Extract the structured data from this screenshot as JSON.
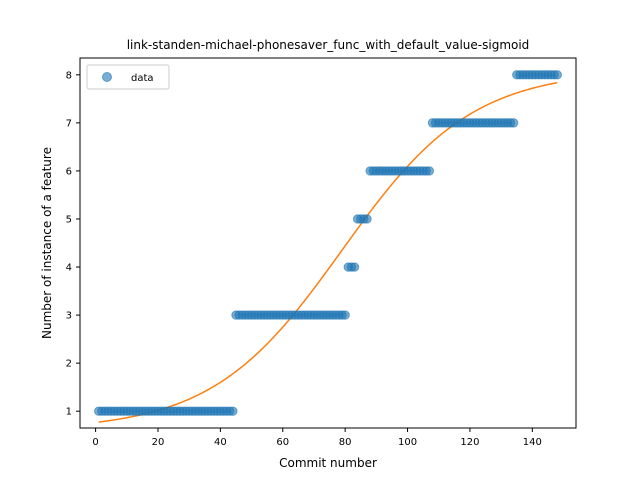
{
  "chart_data": {
    "type": "scatter",
    "title": "link-standen-michael-phonesaver_func_with_default_value-sigmoid",
    "xlabel": "Commit number",
    "ylabel": "Number of instance of a feature",
    "xlim": [
      -5,
      154
    ],
    "ylim": [
      0.65,
      8.35
    ],
    "xticks": [
      0,
      20,
      40,
      60,
      80,
      100,
      120,
      140
    ],
    "yticks": [
      1,
      2,
      3,
      4,
      5,
      6,
      7,
      8
    ],
    "legend": {
      "position": "top-left",
      "entries": [
        "data"
      ]
    },
    "colors": {
      "data": "#1f77b4",
      "fit": "#ff7f0e"
    },
    "series": [
      {
        "name": "data",
        "kind": "scatter",
        "segments": [
          {
            "x_start": 1,
            "x_end": 44,
            "y": 1
          },
          {
            "x_start": 45,
            "x_end": 80,
            "y": 3
          },
          {
            "x_start": 81,
            "x_end": 83,
            "y": 4
          },
          {
            "x_start": 84,
            "x_end": 87,
            "y": 5
          },
          {
            "x_start": 88,
            "x_end": 107,
            "y": 6
          },
          {
            "x_start": 108,
            "x_end": 134,
            "y": 7
          },
          {
            "x_start": 135,
            "x_end": 148,
            "y": 8
          }
        ]
      },
      {
        "kind": "line",
        "x_range": [
          1,
          148
        ],
        "sigmoid": {
          "L": 7.5,
          "k": 0.048,
          "x0": 79,
          "b": 0.6
        }
      }
    ]
  }
}
